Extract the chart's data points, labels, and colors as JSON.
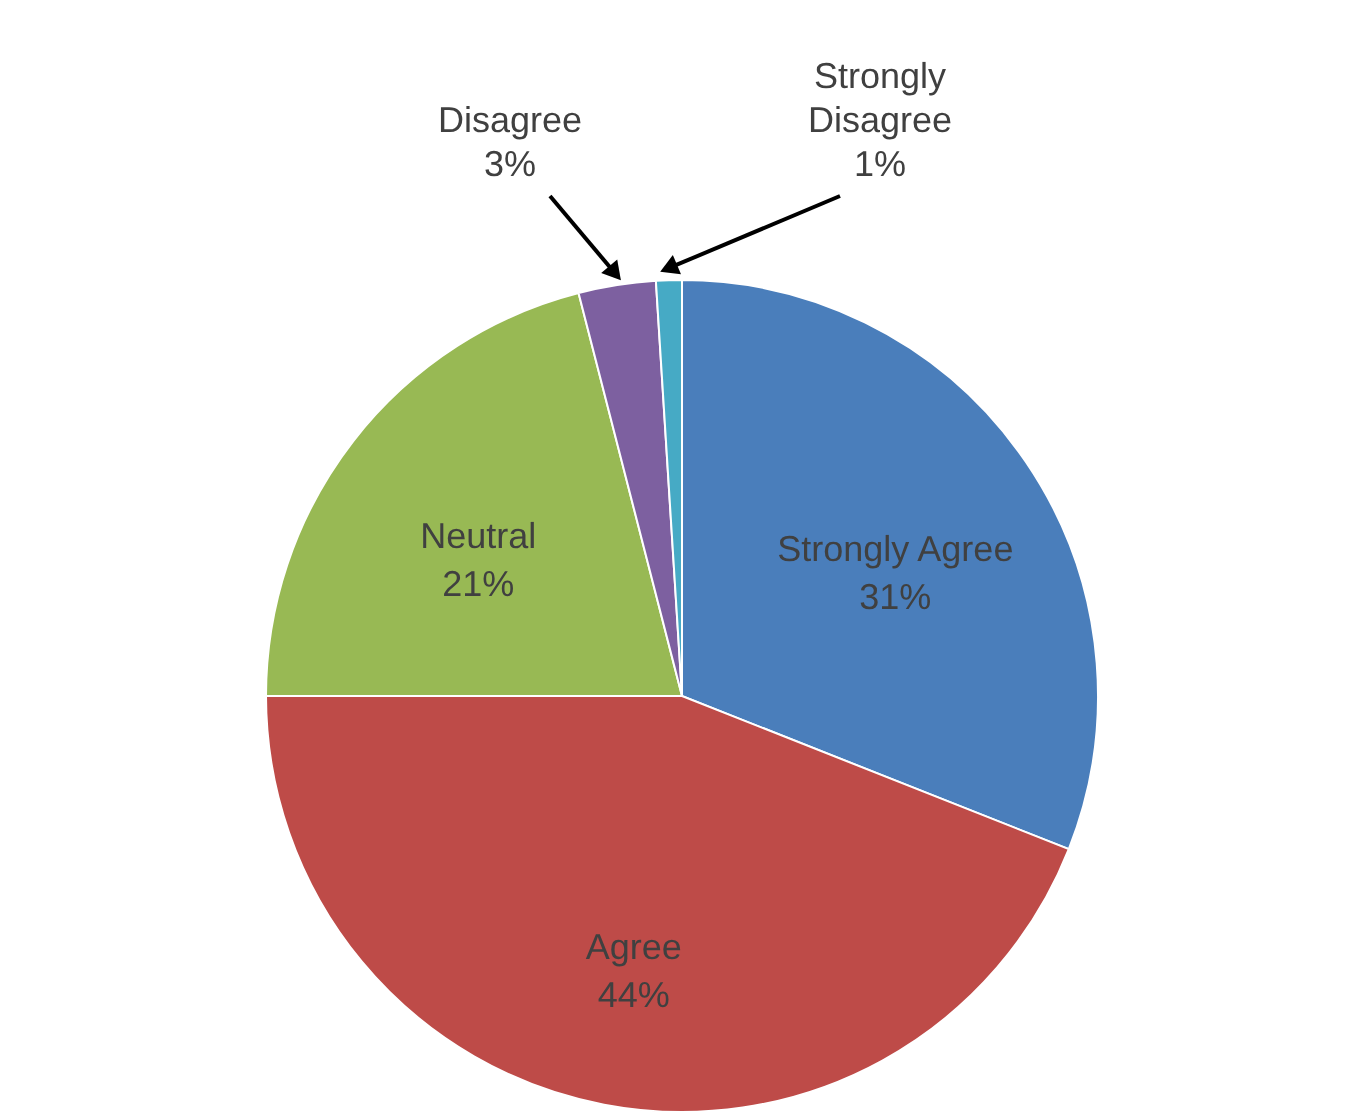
{
  "chart_data": {
    "type": "pie",
    "categories": [
      "Strongly Agree",
      "Agree",
      "Neutral",
      "Disagree",
      "Strongly Disagree"
    ],
    "values": [
      31,
      44,
      21,
      3,
      1
    ],
    "value_labels": [
      "31%",
      "44%",
      "21%",
      "3%",
      "1%"
    ],
    "colors": [
      "#4a7ebb",
      "#be4b48",
      "#98b954",
      "#7d60a0",
      "#46aac5"
    ]
  }
}
